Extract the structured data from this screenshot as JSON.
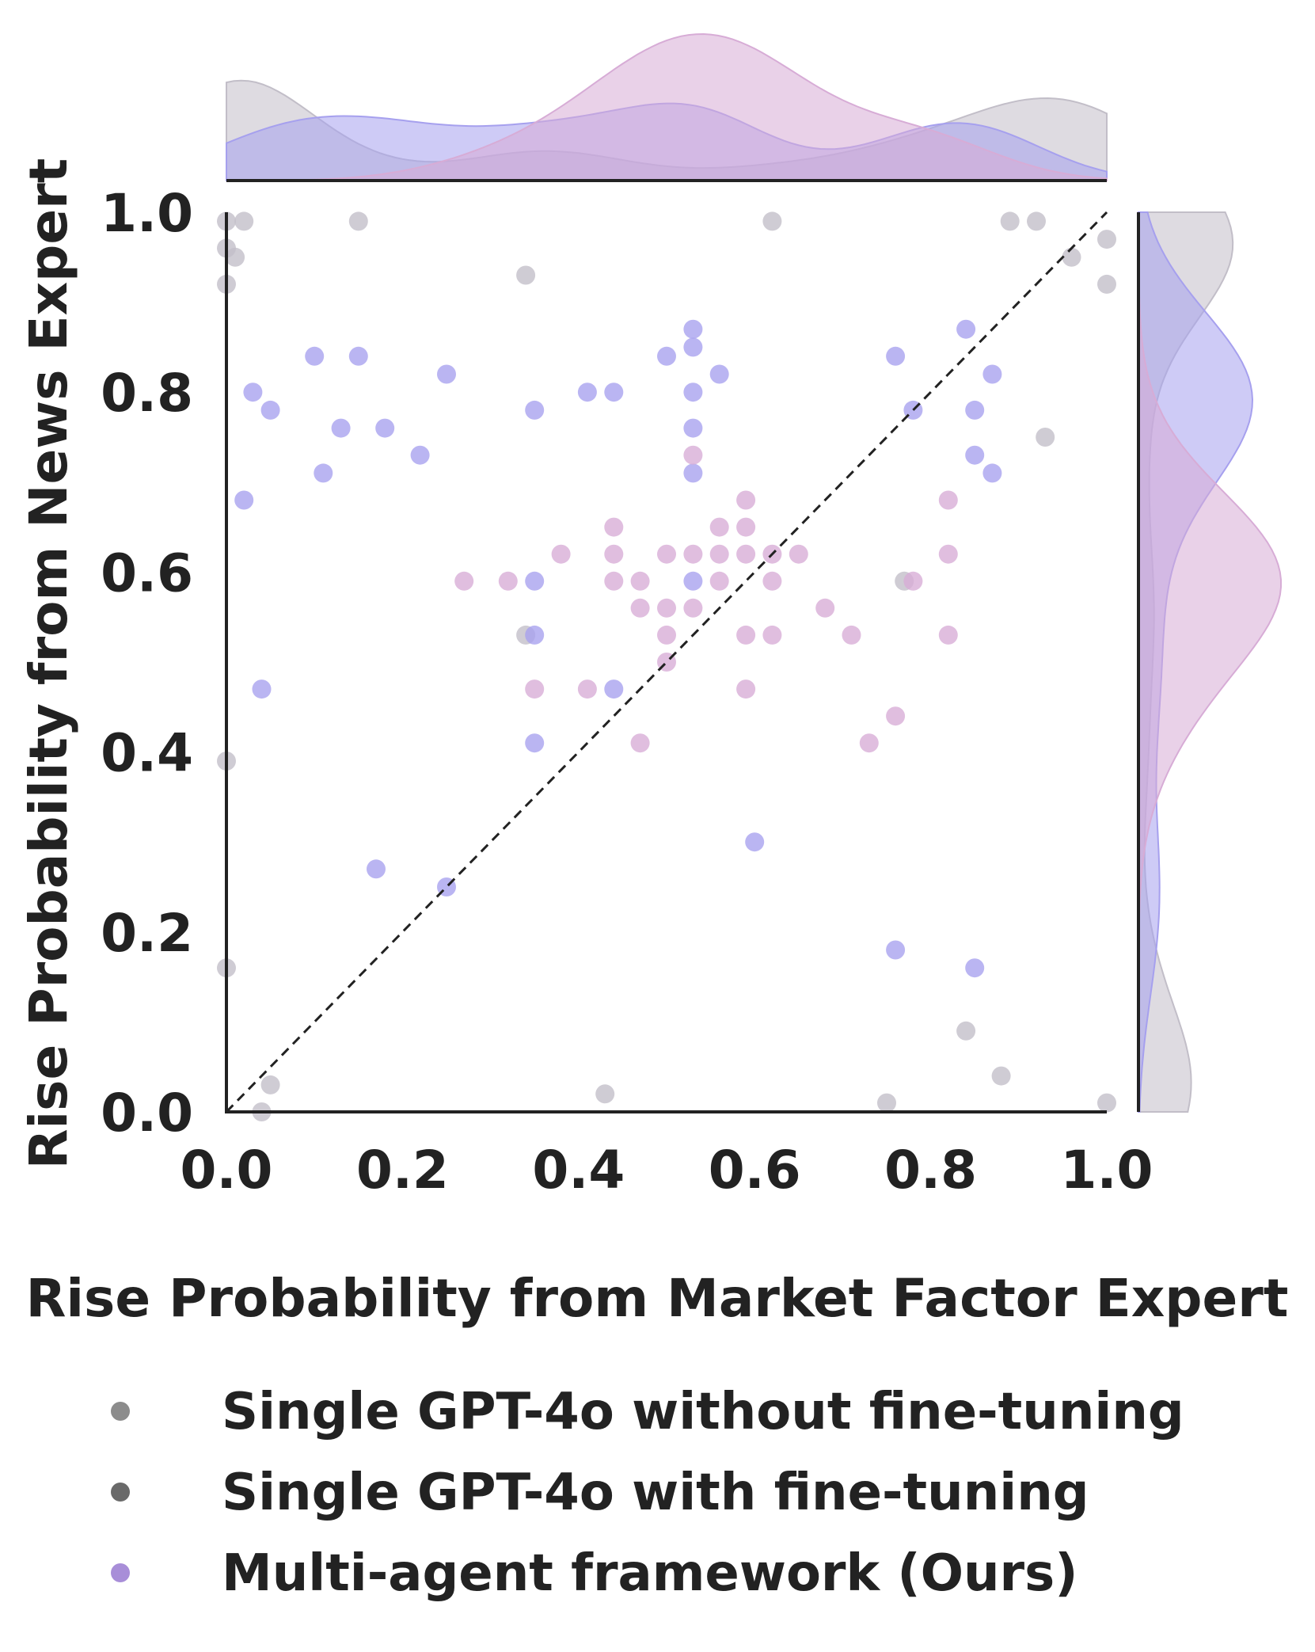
{
  "chart_data": {
    "type": "scatter",
    "xlabel": "Rise Probability from Market Factor Expert",
    "ylabel": "Rise Probability from News Expert",
    "xlim": [
      0,
      1
    ],
    "ylim": [
      0,
      1
    ],
    "x_ticks": [
      "0.0",
      "0.2",
      "0.4",
      "0.6",
      "0.8",
      "1.0"
    ],
    "y_ticks": [
      "0.0",
      "0.2",
      "0.4",
      "0.6",
      "0.8",
      "1.0"
    ],
    "diagonal_reference": true,
    "marginal_distributions": "kde",
    "grid": false,
    "legend_position": "bottom",
    "series": [
      {
        "name": "Single GPT-4o without fine-tuning",
        "color": "#c2bec8",
        "legend_color": "#8c8c8c",
        "points": [
          [
            0.0,
            0.99
          ],
          [
            0.02,
            0.99
          ],
          [
            0.15,
            0.99
          ],
          [
            0.62,
            0.99
          ],
          [
            0.89,
            0.99
          ],
          [
            0.92,
            0.99
          ],
          [
            0.0,
            0.96
          ],
          [
            0.01,
            0.95
          ],
          [
            1.0,
            0.97
          ],
          [
            0.96,
            0.95
          ],
          [
            1.0,
            0.92
          ],
          [
            0.0,
            0.92
          ],
          [
            0.34,
            0.93
          ],
          [
            0.93,
            0.75
          ],
          [
            0.34,
            0.53
          ],
          [
            0.77,
            0.59
          ],
          [
            0.0,
            0.39
          ],
          [
            0.0,
            0.16
          ],
          [
            0.84,
            0.09
          ],
          [
            0.88,
            0.04
          ],
          [
            0.05,
            0.03
          ],
          [
            0.04,
            0.0
          ],
          [
            0.43,
            0.02
          ],
          [
            0.75,
            0.01
          ],
          [
            1.0,
            0.01
          ]
        ]
      },
      {
        "name": "Single GPT-4o with fine-tuning",
        "color": "#a6a0ee",
        "legend_color": "#6a6a6a",
        "points": [
          [
            0.1,
            0.84
          ],
          [
            0.15,
            0.84
          ],
          [
            0.25,
            0.82
          ],
          [
            0.03,
            0.8
          ],
          [
            0.05,
            0.78
          ],
          [
            0.13,
            0.76
          ],
          [
            0.18,
            0.76
          ],
          [
            0.22,
            0.73
          ],
          [
            0.11,
            0.71
          ],
          [
            0.02,
            0.68
          ],
          [
            0.35,
            0.78
          ],
          [
            0.41,
            0.8
          ],
          [
            0.44,
            0.8
          ],
          [
            0.5,
            0.84
          ],
          [
            0.53,
            0.87
          ],
          [
            0.53,
            0.85
          ],
          [
            0.56,
            0.82
          ],
          [
            0.53,
            0.8
          ],
          [
            0.53,
            0.76
          ],
          [
            0.53,
            0.71
          ],
          [
            0.84,
            0.87
          ],
          [
            0.76,
            0.84
          ],
          [
            0.87,
            0.82
          ],
          [
            0.85,
            0.78
          ],
          [
            0.78,
            0.78
          ],
          [
            0.85,
            0.73
          ],
          [
            0.87,
            0.71
          ],
          [
            0.35,
            0.59
          ],
          [
            0.53,
            0.59
          ],
          [
            0.35,
            0.53
          ],
          [
            0.04,
            0.47
          ],
          [
            0.44,
            0.47
          ],
          [
            0.35,
            0.41
          ],
          [
            0.17,
            0.27
          ],
          [
            0.25,
            0.25
          ],
          [
            0.6,
            0.3
          ],
          [
            0.76,
            0.18
          ],
          [
            0.85,
            0.16
          ]
        ]
      },
      {
        "name": "Multi-agent framework (Ours)",
        "color": "#d7acd6",
        "legend_color": "#a88ed8",
        "points": [
          [
            0.27,
            0.59
          ],
          [
            0.32,
            0.59
          ],
          [
            0.38,
            0.62
          ],
          [
            0.44,
            0.65
          ],
          [
            0.44,
            0.62
          ],
          [
            0.44,
            0.59
          ],
          [
            0.47,
            0.59
          ],
          [
            0.47,
            0.56
          ],
          [
            0.5,
            0.62
          ],
          [
            0.5,
            0.56
          ],
          [
            0.5,
            0.53
          ],
          [
            0.5,
            0.5
          ],
          [
            0.53,
            0.73
          ],
          [
            0.53,
            0.62
          ],
          [
            0.53,
            0.56
          ],
          [
            0.56,
            0.65
          ],
          [
            0.56,
            0.62
          ],
          [
            0.56,
            0.59
          ],
          [
            0.59,
            0.68
          ],
          [
            0.59,
            0.65
          ],
          [
            0.59,
            0.62
          ],
          [
            0.59,
            0.53
          ],
          [
            0.59,
            0.47
          ],
          [
            0.62,
            0.62
          ],
          [
            0.62,
            0.59
          ],
          [
            0.62,
            0.53
          ],
          [
            0.65,
            0.62
          ],
          [
            0.68,
            0.56
          ],
          [
            0.71,
            0.53
          ],
          [
            0.35,
            0.47
          ],
          [
            0.41,
            0.47
          ],
          [
            0.47,
            0.41
          ],
          [
            0.73,
            0.41
          ],
          [
            0.76,
            0.44
          ],
          [
            0.82,
            0.68
          ],
          [
            0.82,
            0.62
          ],
          [
            0.82,
            0.53
          ],
          [
            0.78,
            0.59
          ]
        ]
      }
    ]
  }
}
